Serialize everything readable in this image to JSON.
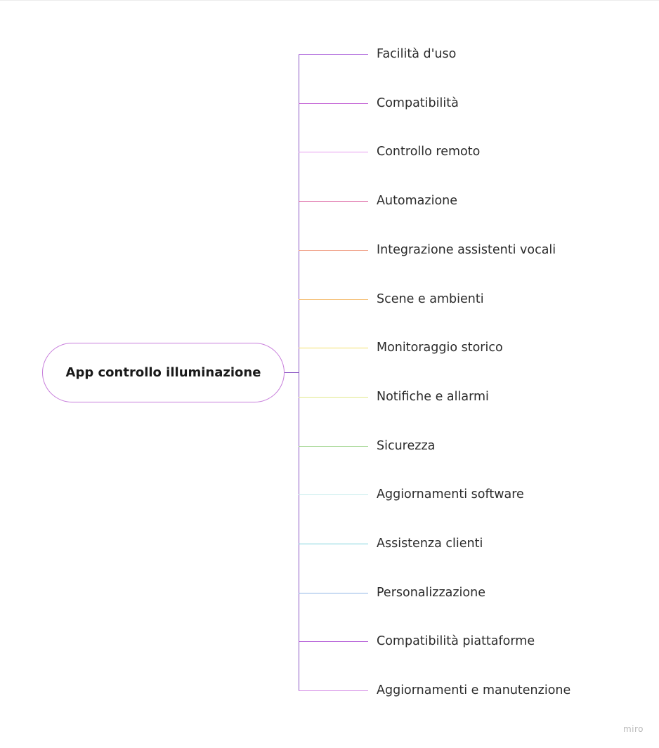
{
  "root": {
    "label": "App controllo illuminazione",
    "color": "#c77ddb"
  },
  "branches": [
    {
      "label": "Facilità d'uso",
      "color": "#b87ae0"
    },
    {
      "label": "Compatibilità",
      "color": "#c25fd4"
    },
    {
      "label": "Controllo remoto",
      "color": "#e79cf0"
    },
    {
      "label": "Automazione",
      "color": "#d9569a"
    },
    {
      "label": "Integrazione assistenti vocali",
      "color": "#ef9c82"
    },
    {
      "label": "Scene e ambienti",
      "color": "#f5c27a"
    },
    {
      "label": "Monitoraggio storico",
      "color": "#f3e06a"
    },
    {
      "label": "Notifiche e allarmi",
      "color": "#e1e88a"
    },
    {
      "label": "Sicurezza",
      "color": "#9fd48e"
    },
    {
      "label": "Aggiornamenti software",
      "color": "#c5ecec"
    },
    {
      "label": "Assistenza clienti",
      "color": "#7cd3dc"
    },
    {
      "label": "Personalizzazione",
      "color": "#90b6e6"
    },
    {
      "label": "Compatibilità piattaforme",
      "color": "#b35ad6"
    },
    {
      "label": "Aggiornamenti e manutenzione",
      "color": "#d48be6"
    }
  ],
  "trunk_color": "#8b56c4",
  "watermark": "miro"
}
